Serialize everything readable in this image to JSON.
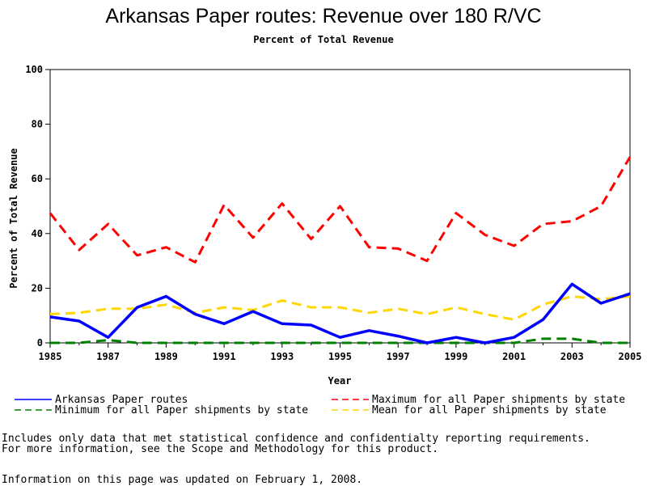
{
  "chart_data": {
    "type": "line",
    "title": "Arkansas Paper routes: Revenue over 180 R/VC",
    "subtitle": "Percent of Total Revenue",
    "xlabel": "Year",
    "ylabel": "Percent of Total Revenue",
    "xlim": [
      1985,
      2005
    ],
    "ylim": [
      0,
      100
    ],
    "x_ticks": [
      1985,
      1987,
      1989,
      1991,
      1993,
      1995,
      1997,
      1999,
      2001,
      2003,
      2005
    ],
    "y_ticks": [
      0,
      20,
      40,
      60,
      80,
      100
    ],
    "x": [
      1985,
      1986,
      1987,
      1988,
      1989,
      1990,
      1991,
      1992,
      1993,
      1994,
      1995,
      1996,
      1997,
      1998,
      1999,
      2000,
      2001,
      2002,
      2003,
      2004,
      2005
    ],
    "series": [
      {
        "name": "Arkansas Paper routes",
        "color": "#0000ff",
        "style": "solid",
        "values": [
          9.5,
          8,
          2,
          13,
          17,
          10.5,
          7,
          11.5,
          7,
          6.5,
          2,
          4.5,
          2.5,
          0,
          2,
          0,
          2,
          8.5,
          21.5,
          14.5,
          18
        ]
      },
      {
        "name": "Maximum for all Paper shipments by state",
        "color": "#ff0000",
        "style": "dashed",
        "values": [
          47.5,
          34,
          43.5,
          32,
          35,
          29.5,
          50.5,
          38.5,
          51,
          38,
          50,
          35,
          34.5,
          30,
          47.5,
          39.5,
          35.5,
          43.5,
          44.5,
          50,
          68
        ]
      },
      {
        "name": "Minimum for all Paper shipments by state",
        "color": "#008000",
        "style": "dashed",
        "values": [
          0,
          0,
          1,
          0,
          0,
          0,
          0,
          0,
          0,
          0,
          0,
          0,
          0,
          0,
          0,
          0,
          0,
          1.5,
          1.5,
          0,
          0
        ]
      },
      {
        "name": "Mean for all Paper shipments by state",
        "color": "#ffd700",
        "style": "dashed",
        "values": [
          10.5,
          11,
          12.5,
          12.5,
          14,
          11,
          13,
          12,
          15.5,
          13,
          13,
          11,
          12.5,
          10.5,
          13,
          10.5,
          8.5,
          14,
          17,
          16,
          17
        ]
      }
    ]
  },
  "notes": {
    "line1": "Includes only data that met statistical confidence and confidentialty reporting requirements.",
    "line2": "For more information, see the Scope and Methodology for this product.",
    "updated": "Information on this page was updated on February 1, 2008."
  }
}
